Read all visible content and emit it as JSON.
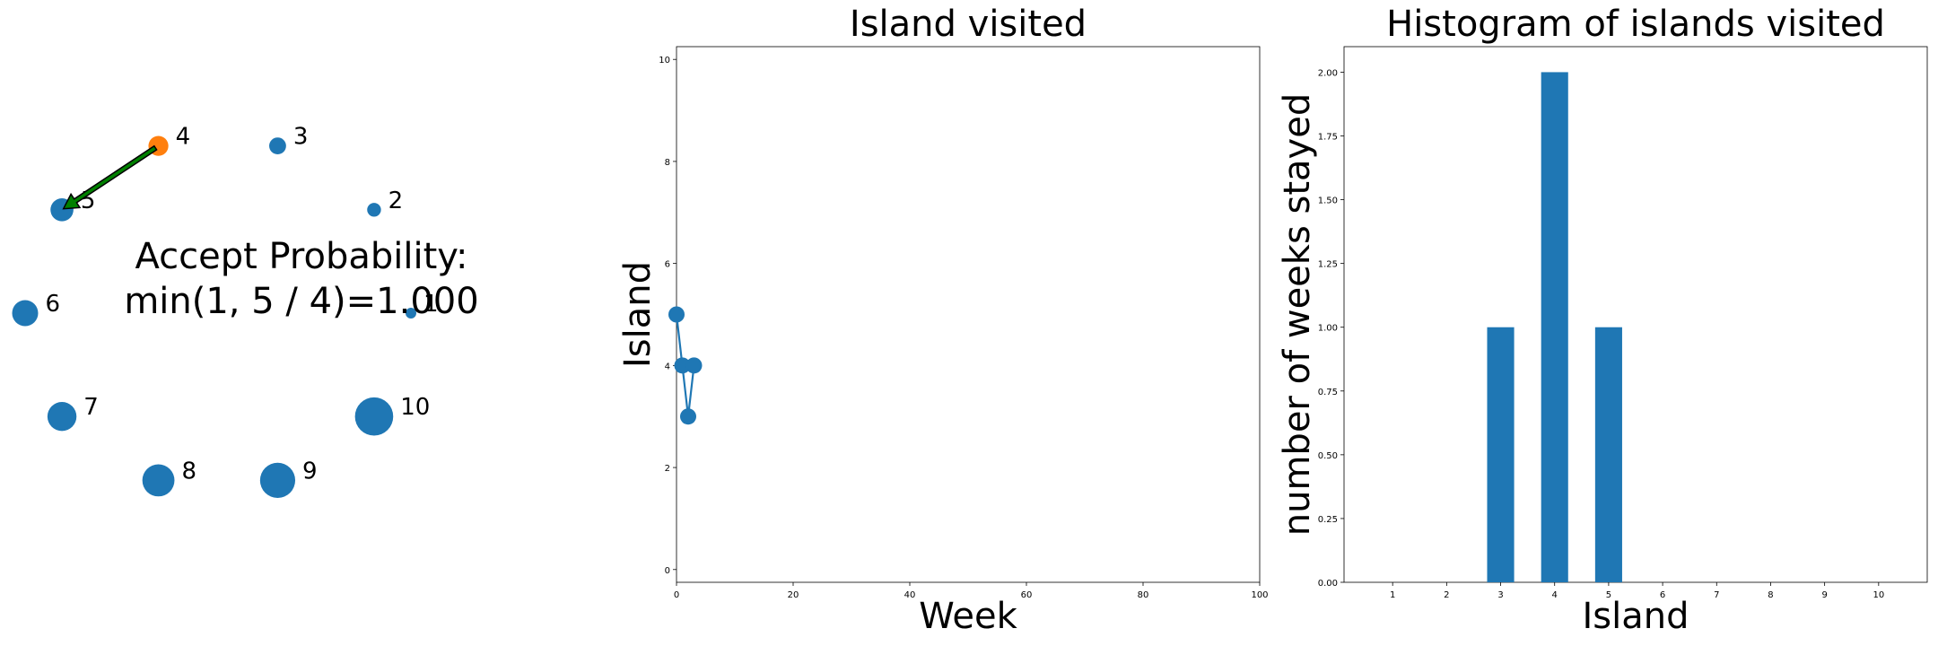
{
  "chart_data": [
    {
      "type": "scatter",
      "panel": "islands",
      "points": [
        {
          "label": "1",
          "size": 1,
          "highlight": false
        },
        {
          "label": "2",
          "size": 2,
          "highlight": false
        },
        {
          "label": "3",
          "size": 3,
          "highlight": false
        },
        {
          "label": "4",
          "size": 4,
          "highlight": true
        },
        {
          "label": "5",
          "size": 5,
          "highlight": false
        },
        {
          "label": "6",
          "size": 6,
          "highlight": false
        },
        {
          "label": "7",
          "size": 7,
          "highlight": false
        },
        {
          "label": "8",
          "size": 8,
          "highlight": false
        },
        {
          "label": "9",
          "size": 9,
          "highlight": false
        },
        {
          "label": "10",
          "size": 10,
          "highlight": false
        }
      ],
      "move": {
        "from": "4",
        "to": "5"
      },
      "annotation_lines": [
        "Accept Probability:",
        "min(1, 5 / 4)=1.000"
      ],
      "colors": {
        "point": "#1f77b4",
        "current": "#ff7f0e",
        "arrow_fill": "#008000",
        "arrow_edge": "#000000"
      }
    },
    {
      "type": "line",
      "panel": "trace",
      "title": "Island visited",
      "xlabel": "Week",
      "ylabel": "Island",
      "x": [
        0,
        1,
        2,
        3
      ],
      "y": [
        5,
        4,
        3,
        4
      ],
      "xlim": [
        0,
        100
      ],
      "ylim": [
        0,
        10
      ],
      "xticks": [
        "0",
        "20",
        "40",
        "60",
        "80",
        "100"
      ],
      "yticks": [
        "0",
        "2",
        "4",
        "6",
        "8",
        "10"
      ],
      "color": "#1f77b4"
    },
    {
      "type": "bar",
      "panel": "histogram",
      "title": "Histogram of islands visited",
      "xlabel": "Island",
      "ylabel": "number of weeks stayed",
      "categories": [
        "1",
        "2",
        "3",
        "4",
        "5",
        "6",
        "7",
        "8",
        "9",
        "10"
      ],
      "values": [
        0,
        0,
        1,
        2,
        1,
        0,
        0,
        0,
        0,
        0
      ],
      "ylim": [
        0,
        2.1
      ],
      "yticks": [
        "0.00",
        "0.25",
        "0.50",
        "0.75",
        "1.00",
        "1.25",
        "1.50",
        "1.75",
        "2.00"
      ],
      "color": "#1f77b4"
    }
  ]
}
